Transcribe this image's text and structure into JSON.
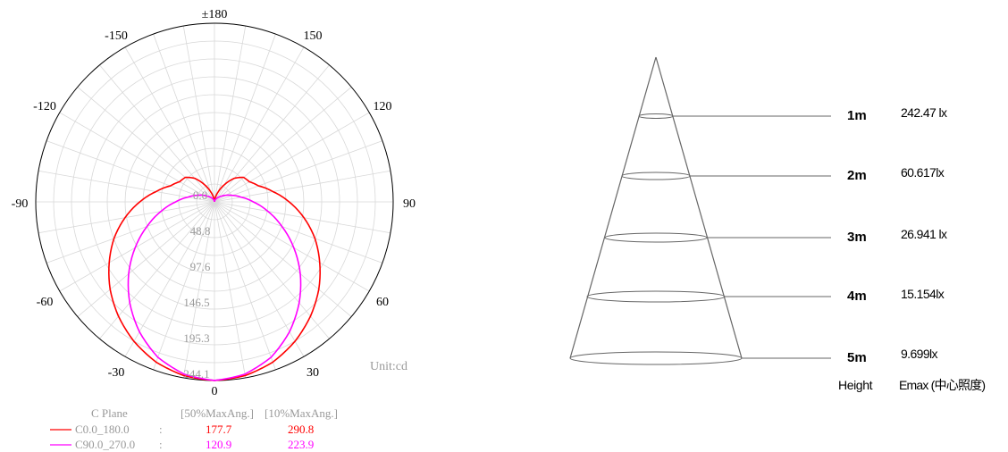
{
  "polar": {
    "angle_labels": {
      "top": "±180",
      "bottom": "0",
      "left": "-90",
      "right": "90",
      "upper_left_1": "-150",
      "upper_left_2": "-120",
      "upper_right_1": "150",
      "upper_right_2": "120",
      "lower_left_1": "-60",
      "lower_left_2": "-30",
      "lower_right_1": "60",
      "lower_right_2": "30"
    },
    "radial_labels": [
      "0.0",
      "48.8",
      "97.6",
      "146.5",
      "195.3",
      "244.1"
    ],
    "unit": "Unit:cd",
    "legend": {
      "header_plane": "C Plane",
      "header_50": "[50%MaxAng.]",
      "header_10": "[10%MaxAng.]",
      "rows": [
        {
          "name": "C0.0_180.0",
          "sep": ":",
          "v50": "177.7",
          "v10": "290.8",
          "color": "#ff0000"
        },
        {
          "name": "C90.0_270.0",
          "sep": ":",
          "v50": "120.9",
          "v10": "223.9",
          "color": "#ff00ff"
        }
      ]
    }
  },
  "chart_data": {
    "type": "polar",
    "unit": "cd",
    "rmax": 244.1,
    "series": [
      {
        "name": "C0.0_180.0",
        "color": "#ff0000",
        "curve": [
          [
            0,
            244
          ],
          [
            10,
            241
          ],
          [
            20,
            233
          ],
          [
            30,
            220
          ],
          [
            40,
            204
          ],
          [
            50,
            186
          ],
          [
            60,
            166
          ],
          [
            70,
            146
          ],
          [
            80,
            124
          ],
          [
            90,
            102
          ],
          [
            100,
            81
          ],
          [
            110,
            64
          ],
          [
            120,
            55
          ],
          [
            130,
            52
          ],
          [
            140,
            42
          ],
          [
            150,
            27
          ],
          [
            160,
            14
          ],
          [
            170,
            5
          ],
          [
            180,
            0
          ]
        ]
      },
      {
        "name": "C90.0_270.0",
        "color": "#ff00ff",
        "curve": [
          [
            0,
            244
          ],
          [
            10,
            239
          ],
          [
            20,
            226
          ],
          [
            30,
            205
          ],
          [
            40,
            180
          ],
          [
            50,
            153
          ],
          [
            60,
            125
          ],
          [
            70,
            98
          ],
          [
            80,
            74
          ],
          [
            90,
            53
          ],
          [
            100,
            37
          ],
          [
            110,
            26
          ],
          [
            120,
            18
          ],
          [
            130,
            12
          ],
          [
            140,
            8
          ],
          [
            150,
            5
          ],
          [
            160,
            3
          ],
          [
            170,
            1
          ],
          [
            180,
            0
          ]
        ]
      }
    ]
  },
  "cone": {
    "rows": [
      {
        "height": "1m",
        "lux": "242.47 lx"
      },
      {
        "height": "2m",
        "lux": "60.617lx"
      },
      {
        "height": "3m",
        "lux": "26.941 lx"
      },
      {
        "height": "4m",
        "lux": "15.154lx"
      },
      {
        "height": "5m",
        "lux": "9.699lx"
      }
    ],
    "footer": {
      "height_label": "Height",
      "emax_label": "Emax (中心照度)"
    }
  }
}
